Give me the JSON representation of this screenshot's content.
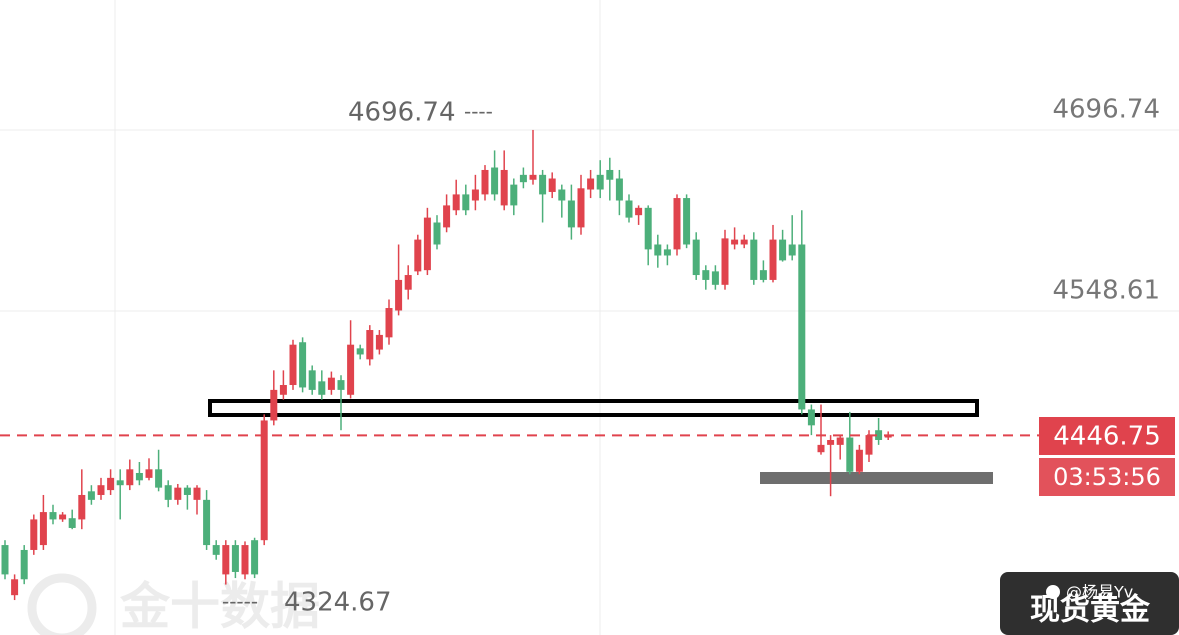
{
  "chart_data": {
    "type": "candlestick",
    "up_color": "#e0434d",
    "down_color": "#4caf7a",
    "price_line_color": "#e0434d",
    "countdown": "03:53:56",
    "watermark": "金十数据",
    "symbol": "现货黄金",
    "author": "@杨易Yv",
    "ylim": [
      4283.4,
      4803.1
    ],
    "yticks": [
      4696.74,
      4548.61
    ],
    "grid": true,
    "open": [
      4357,
      4316,
      4353,
      4353,
      4357,
      4384,
      4378,
      4379,
      4378,
      4401,
      4398,
      4402,
      4410,
      4406,
      4416,
      4412,
      4419,
      4406,
      4394,
      4404,
      4394,
      4394,
      4357,
      4333,
      4357,
      4333,
      4361,
      4361,
      4459,
      4480,
      4488,
      4523,
      4500,
      4491,
      4484,
      4492,
      4480,
      4518,
      4509,
      4517,
      4527,
      4549,
      4566,
      4581,
      4582,
      4621,
      4617,
      4631,
      4644,
      4639,
      4644,
      4666,
      4635,
      4652,
      4660,
      4656,
      4660,
      4646,
      4648,
      4639,
      4617,
      4648,
      4660,
      4664,
      4657,
      4639,
      4627,
      4633,
      4603,
      4599,
      4599,
      4641,
      4607,
      4582,
      4581,
      4570,
      4603,
      4603,
      4607,
      4582,
      4574,
      4607,
      4603,
      4603,
      4468,
      4433,
      4439,
      4439,
      4445,
      4417,
      4431,
      4451,
      4445
    ],
    "high": [
      4361,
      4333,
      4357,
      4382,
      4398,
      4390,
      4384,
      4386,
      4419,
      4406,
      4412,
      4419,
      4419,
      4427,
      4425,
      4428,
      4435,
      4410,
      4407,
      4406,
      4406,
      4402,
      4361,
      4361,
      4361,
      4360,
      4363,
      4464,
      4500,
      4500,
      4525,
      4527,
      4504,
      4500,
      4499,
      4496,
      4541,
      4521,
      4537,
      4533,
      4558,
      4603,
      4586,
      4611,
      4633,
      4627,
      4644,
      4656,
      4652,
      4660,
      4668,
      4680,
      4680,
      4657,
      4666,
      4696.74,
      4664,
      4662,
      4652,
      4652,
      4660,
      4664,
      4672,
      4674,
      4664,
      4644,
      4635,
      4635,
      4611,
      4603,
      4644,
      4644,
      4613,
      4586,
      4586,
      4615,
      4617,
      4611,
      4613,
      4590,
      4619,
      4615,
      4627,
      4631,
      4472,
      4472,
      4447,
      4447,
      4466,
      4439,
      4451,
      4461,
      4450
    ],
    "low": [
      4329,
      4312,
      4325,
      4349,
      4353,
      4374,
      4376,
      4370,
      4370,
      4390,
      4394,
      4398,
      4378,
      4402,
      4406,
      4410,
      4401,
      4388,
      4390,
      4386,
      4382,
      4353,
      4345,
      4324.67,
      4330,
      4329,
      4330,
      4357,
      4455,
      4476,
      4484,
      4482,
      4480,
      4476,
      4480,
      4451,
      4477,
      4509,
      4504,
      4513,
      4521,
      4545,
      4558,
      4578,
      4578,
      4599,
      4613,
      4627,
      4627,
      4631,
      4639,
      4639,
      4631,
      4627,
      4649,
      4652,
      4621,
      4641,
      4625,
      4607,
      4611,
      4641,
      4641,
      4639,
      4627,
      4621,
      4619,
      4586,
      4584,
      4586,
      4594,
      4600,
      4574,
      4566,
      4566,
      4566,
      4599,
      4600,
      4570,
      4572,
      4572,
      4589,
      4590,
      4464,
      4447,
      4431,
      4397,
      4427,
      4415,
      4415,
      4425,
      4439,
      4443
    ],
    "close": [
      4333,
      4329,
      4329,
      4378,
      4384,
      4378,
      4382,
      4371,
      4398,
      4394,
      4406,
      4412,
      4406,
      4419,
      4410,
      4419,
      4404,
      4394,
      4404,
      4398,
      4404,
      4357,
      4349,
      4357,
      4335,
      4357,
      4333,
      4459,
      4484,
      4488,
      4521,
      4486,
      4484,
      4480,
      4494,
      4484,
      4521,
      4513,
      4533,
      4529,
      4551,
      4574,
      4578,
      4607,
      4625,
      4603,
      4635,
      4644,
      4631,
      4648,
      4664,
      4644,
      4664,
      4635,
      4654,
      4660,
      4644,
      4657,
      4639,
      4617,
      4649,
      4657,
      4648,
      4656,
      4639,
      4625,
      4633,
      4599,
      4594,
      4594,
      4641,
      4603,
      4578,
      4574,
      4570,
      4608,
      4607,
      4607,
      4574,
      4574,
      4607,
      4590,
      4594,
      4468,
      4455,
      4439,
      4443,
      4445,
      4417,
      4435,
      4447,
      4443,
      4446.75
    ]
  }
}
